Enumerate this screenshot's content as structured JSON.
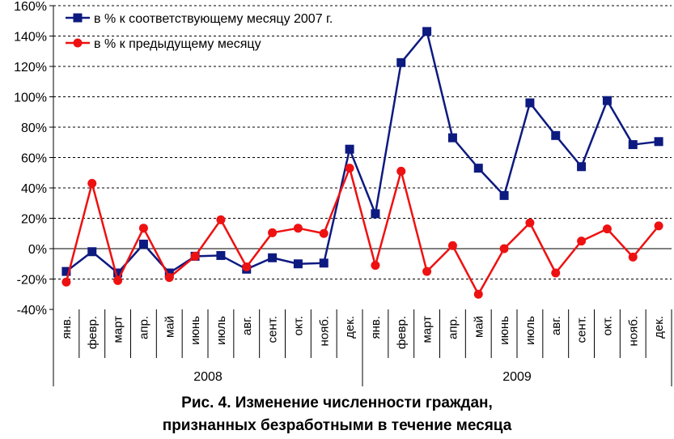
{
  "chart_data": {
    "type": "line",
    "y_ticks": [
      "-40%",
      "-20%",
      "0%",
      "20%",
      "40%",
      "60%",
      "80%",
      "100%",
      "120%",
      "140%",
      "160%"
    ],
    "ylim": [
      -40,
      160
    ],
    "grid": "horizontal dashed",
    "legend_position": "top-left",
    "categories": [
      "янв.",
      "февр.",
      "март",
      "апр.",
      "май",
      "июнь",
      "июль",
      "авг.",
      "сент.",
      "окт.",
      "нояб.",
      "дек.",
      "янв.",
      "февр.",
      "март",
      "апр.",
      "май",
      "июнь",
      "июль",
      "авг.",
      "сент.",
      "окт.",
      "нояб.",
      "дек."
    ],
    "groups": [
      {
        "label": "2008",
        "count": 12
      },
      {
        "label": "2009",
        "count": 12
      }
    ],
    "series": [
      {
        "name": "в % к соответствующему месяцу 2007 г.",
        "color": "#0d1a80",
        "marker": "square",
        "values": [
          -15,
          -2,
          -16,
          3,
          -16,
          -5,
          -4.5,
          -13.5,
          -6,
          -10,
          -9.5,
          65.5,
          23,
          122.5,
          143,
          73,
          53,
          35,
          96,
          74.5,
          54,
          97.5,
          68.5,
          70.5
        ]
      },
      {
        "name": "в % к предыдущему месяцу",
        "color": "#ee1111",
        "marker": "circle",
        "values": [
          -22,
          43,
          -21,
          13.5,
          -19,
          -5,
          19,
          -12,
          10.5,
          13.5,
          10,
          53,
          -11,
          51,
          -15,
          2,
          -30,
          0,
          17,
          -16,
          5,
          13,
          -5.5,
          15
        ]
      }
    ]
  },
  "caption": {
    "line1": "Рис. 4. Изменение численности граждан,",
    "line2": "признанных безработными в течение месяца"
  }
}
